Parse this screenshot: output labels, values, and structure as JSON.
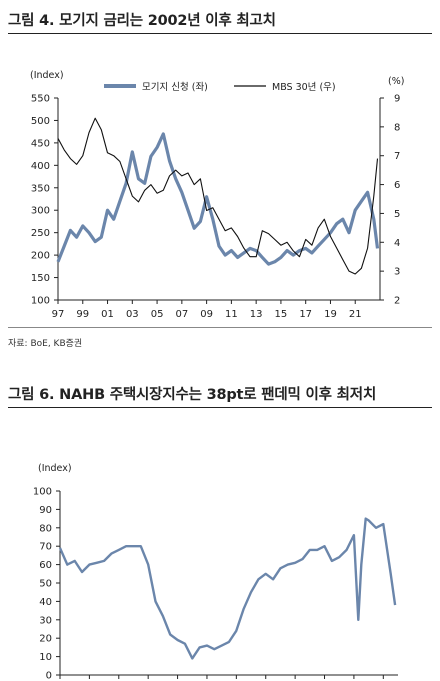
{
  "fig4": {
    "title": "그림 4. 모기지 금리는 2002년 이후 최고치",
    "source": "자료: BoE, KB증권"
  },
  "fig6": {
    "title": "그림 6. NAHB 주택시장지수는 38pt로 팬데믹 이후 최저치"
  },
  "colors": {
    "series_a": "#6b86ab",
    "series_b": "#111111",
    "axis": "#222222"
  },
  "chart_data": [
    {
      "type": "line",
      "left_axis_unit": "(Index)",
      "right_axis_unit": "(%)",
      "ylim": [
        100,
        550
      ],
      "yticks": [
        100,
        150,
        200,
        250,
        300,
        350,
        400,
        450,
        500,
        550
      ],
      "y2lim": [
        2,
        9
      ],
      "y2ticks": [
        2,
        3,
        4,
        5,
        6,
        7,
        8,
        9
      ],
      "xlim": [
        1997,
        2023
      ],
      "xticks": [
        1997,
        1999,
        2001,
        2003,
        2005,
        2007,
        2009,
        2011,
        2013,
        2015,
        2017,
        2019,
        2021
      ],
      "xtick_labels": [
        "97",
        "99",
        "01",
        "03",
        "05",
        "07",
        "09",
        "11",
        "13",
        "15",
        "17",
        "19",
        "21"
      ],
      "legend": "top-center",
      "grid": false,
      "series": [
        {
          "name": "모기지 신청 (좌)",
          "axis": "left",
          "x": [
            1997.0,
            1997.5,
            1998.0,
            1998.5,
            1999.0,
            1999.5,
            2000.0,
            2000.5,
            2001.0,
            2001.5,
            2002.0,
            2002.5,
            2003.0,
            2003.5,
            2004.0,
            2004.5,
            2005.0,
            2005.5,
            2006.0,
            2006.5,
            2007.0,
            2007.5,
            2008.0,
            2008.5,
            2009.0,
            2009.5,
            2010.0,
            2010.5,
            2011.0,
            2011.5,
            2012.0,
            2012.5,
            2013.0,
            2013.5,
            2014.0,
            2014.5,
            2015.0,
            2015.5,
            2016.0,
            2016.5,
            2017.0,
            2017.5,
            2018.0,
            2018.5,
            2019.0,
            2019.5,
            2020.0,
            2020.5,
            2021.0,
            2021.5,
            2022.0,
            2022.5,
            2022.8
          ],
          "y": [
            185,
            220,
            255,
            240,
            265,
            250,
            230,
            240,
            300,
            280,
            320,
            360,
            430,
            370,
            360,
            420,
            440,
            470,
            410,
            370,
            340,
            300,
            260,
            275,
            330,
            280,
            220,
            200,
            210,
            195,
            205,
            215,
            210,
            195,
            180,
            185,
            195,
            210,
            200,
            210,
            215,
            205,
            220,
            235,
            250,
            270,
            280,
            250,
            300,
            320,
            340,
            280,
            215
          ]
        },
        {
          "name": "MBS 30년 (우)",
          "axis": "right",
          "x": [
            1997.0,
            1997.5,
            1998.0,
            1998.5,
            1999.0,
            1999.5,
            2000.0,
            2000.5,
            2001.0,
            2001.5,
            2002.0,
            2002.5,
            2003.0,
            2003.5,
            2004.0,
            2004.5,
            2005.0,
            2005.5,
            2006.0,
            2006.5,
            2007.0,
            2007.5,
            2008.0,
            2008.5,
            2009.0,
            2009.5,
            2010.0,
            2010.5,
            2011.0,
            2011.5,
            2012.0,
            2012.5,
            2013.0,
            2013.5,
            2014.0,
            2014.5,
            2015.0,
            2015.5,
            2016.0,
            2016.5,
            2017.0,
            2017.5,
            2018.0,
            2018.5,
            2019.0,
            2019.5,
            2020.0,
            2020.5,
            2021.0,
            2021.5,
            2022.0,
            2022.5,
            2022.8
          ],
          "y": [
            7.6,
            7.2,
            6.9,
            6.7,
            7.0,
            7.8,
            8.3,
            7.9,
            7.1,
            7.0,
            6.8,
            6.2,
            5.6,
            5.4,
            5.8,
            6.0,
            5.7,
            5.8,
            6.3,
            6.5,
            6.3,
            6.4,
            6.0,
            6.2,
            5.1,
            5.2,
            4.8,
            4.4,
            4.5,
            4.2,
            3.8,
            3.5,
            3.5,
            4.4,
            4.3,
            4.1,
            3.9,
            4.0,
            3.7,
            3.5,
            4.1,
            3.9,
            4.5,
            4.8,
            4.2,
            3.8,
            3.4,
            3.0,
            2.9,
            3.1,
            3.8,
            5.6,
            6.9
          ]
        }
      ]
    },
    {
      "type": "line",
      "left_axis_unit": "(Index)",
      "ylim": [
        0,
        100
      ],
      "yticks": [
        0,
        10,
        20,
        30,
        40,
        50,
        60,
        70,
        80,
        90,
        100
      ],
      "xlim": [
        2000,
        2023
      ],
      "grid": false,
      "series": [
        {
          "x": [
            2000.0,
            2000.5,
            2001.0,
            2001.5,
            2002.0,
            2002.5,
            2003.0,
            2003.5,
            2004.0,
            2004.5,
            2005.0,
            2005.5,
            2006.0,
            2006.5,
            2007.0,
            2007.5,
            2008.0,
            2008.5,
            2009.0,
            2009.5,
            2010.0,
            2010.5,
            2011.0,
            2011.5,
            2012.0,
            2012.5,
            2013.0,
            2013.5,
            2014.0,
            2014.5,
            2015.0,
            2015.5,
            2016.0,
            2016.5,
            2017.0,
            2017.5,
            2018.0,
            2018.5,
            2019.0,
            2019.5,
            2020.0,
            2020.3,
            2020.5,
            2020.8,
            2021.0,
            2021.5,
            2022.0,
            2022.5,
            2022.8
          ],
          "y": [
            69,
            60,
            62,
            56,
            60,
            61,
            62,
            66,
            68,
            70,
            70,
            70,
            60,
            40,
            32,
            22,
            19,
            17,
            9,
            15,
            16,
            14,
            16,
            18,
            24,
            36,
            45,
            52,
            55,
            52,
            58,
            60,
            61,
            63,
            68,
            68,
            70,
            62,
            64,
            68,
            76,
            30,
            60,
            85,
            84,
            80,
            82,
            55,
            38
          ]
        }
      ]
    }
  ]
}
